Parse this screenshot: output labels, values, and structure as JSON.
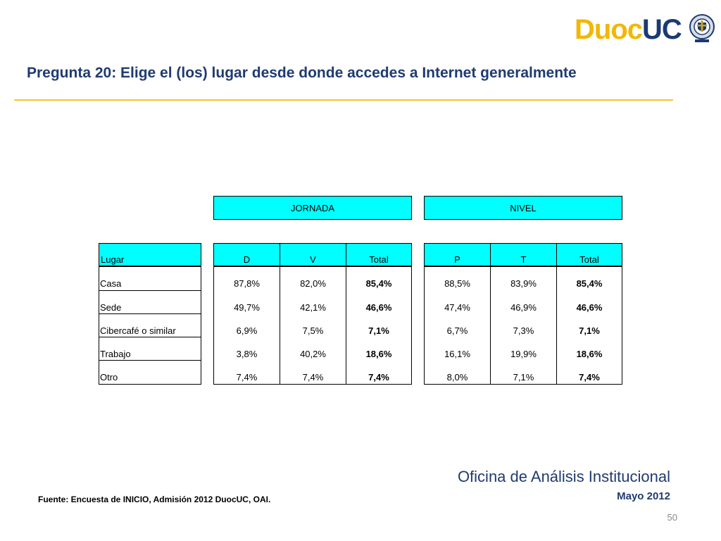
{
  "logo": {
    "part1": "Duoc",
    "part2": "UC"
  },
  "title": "Pregunta 20: Elige el (los) lugar desde donde accedes a Internet generalmente",
  "table": {
    "groups": {
      "jornada": "JORNADA",
      "nivel": "NIVEL"
    },
    "headers": {
      "lugar": "Lugar",
      "d": "D",
      "v": "V",
      "total_j": "Total",
      "p": "P",
      "t": "T",
      "total_n": "Total"
    },
    "rows": [
      {
        "lugar": "Casa",
        "d": "87,8%",
        "v": "82,0%",
        "total_j": "85,4%",
        "p": "88,5%",
        "t": "83,9%",
        "total_n": "85,4%"
      },
      {
        "lugar": "Sede",
        "d": "49,7%",
        "v": "42,1%",
        "total_j": "46,6%",
        "p": "47,4%",
        "t": "46,9%",
        "total_n": "46,6%"
      },
      {
        "lugar": "Cibercafé o similar",
        "d": "6,9%",
        "v": "7,5%",
        "total_j": "7,1%",
        "p": "6,7%",
        "t": "7,3%",
        "total_n": "7,1%"
      },
      {
        "lugar": "Trabajo",
        "d": "3,8%",
        "v": "40,2%",
        "total_j": "18,6%",
        "p": "16,1%",
        "t": "19,9%",
        "total_n": "18,6%"
      },
      {
        "lugar": "Otro",
        "d": "7,4%",
        "v": "7,4%",
        "total_j": "7,4%",
        "p": "8,0%",
        "t": "7,1%",
        "total_n": "7,4%"
      }
    ]
  },
  "footer": {
    "office": "Oficina de Análisis Institucional",
    "date": "Mayo 2012",
    "source": "Fuente: Encuesta de INICIO, Admisión 2012 DuocUC, OAI.",
    "page_number": "50"
  }
}
